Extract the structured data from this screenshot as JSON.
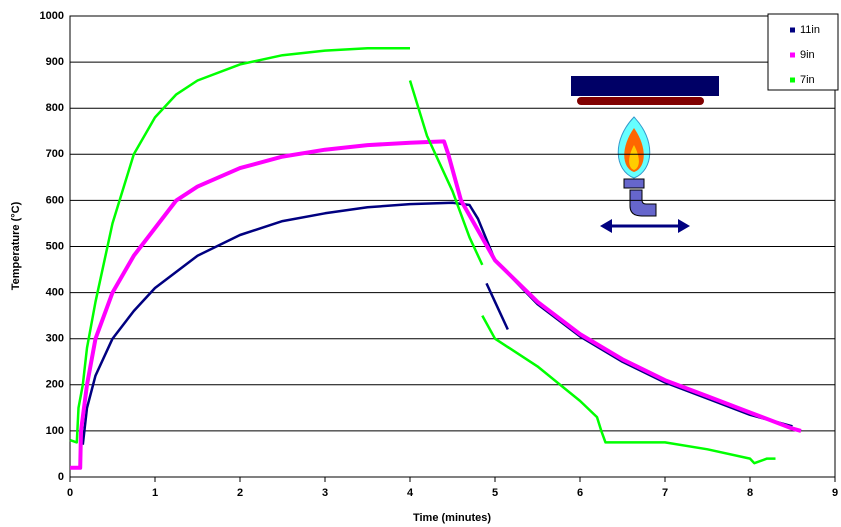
{
  "chart_data": {
    "type": "line",
    "x_label": "Time (minutes)",
    "y_label": "Temperature (°C)",
    "xlim": [
      0,
      9
    ],
    "xticks": [
      0,
      1,
      2,
      3,
      4,
      5,
      6,
      7,
      8,
      9
    ],
    "ylim": [
      0,
      1000
    ],
    "yticks": [
      0,
      100,
      200,
      300,
      400,
      500,
      600,
      700,
      800,
      900,
      1000
    ],
    "grid": true,
    "legend": "top-right",
    "series": [
      {
        "name": "11in",
        "color": "#000080",
        "x": [
          0.15,
          0.2,
          0.3,
          0.5,
          0.75,
          1,
          1.5,
          2,
          2.5,
          3,
          3.5,
          4,
          4.5,
          4.7,
          4.8,
          5,
          5.5,
          6,
          6.5,
          7,
          7.5,
          8,
          8.5,
          null,
          4.9,
          5.0,
          5.15
        ],
        "values": [
          70,
          150,
          220,
          300,
          360,
          410,
          480,
          525,
          555,
          572,
          585,
          592,
          595,
          590,
          560,
          470,
          375,
          305,
          250,
          205,
          170,
          135,
          110,
          null,
          420,
          380,
          320
        ]
      },
      {
        "name": "9in",
        "color": "#ff00ff",
        "x": [
          0,
          0.12,
          0.13,
          0.2,
          0.3,
          0.5,
          0.75,
          1,
          1.25,
          1.5,
          2,
          2.5,
          3,
          3.5,
          4,
          4.4,
          4.45,
          4.6,
          5,
          5.5,
          6,
          6.5,
          7,
          7.5,
          8,
          8.5,
          8.6
        ],
        "values": [
          20,
          20,
          100,
          200,
          300,
          400,
          480,
          540,
          600,
          630,
          670,
          695,
          710,
          720,
          725,
          728,
          700,
          600,
          470,
          380,
          310,
          255,
          210,
          175,
          140,
          105,
          100
        ]
      },
      {
        "name": "7in",
        "color": "#00ff00",
        "x": [
          0,
          0.08,
          0.1,
          0.15,
          0.2,
          0.3,
          0.5,
          0.75,
          1,
          1.25,
          1.5,
          2,
          2.5,
          3,
          3.5,
          4,
          null,
          4.0,
          4.2,
          4.5,
          4.7,
          4.85,
          null,
          4.85,
          5,
          5.5,
          6,
          6.2,
          6.25,
          6.3,
          6.5,
          7,
          7.5,
          8,
          8.05,
          8.2,
          8.3
        ],
        "values": [
          80,
          75,
          150,
          200,
          280,
          380,
          550,
          700,
          780,
          830,
          860,
          895,
          915,
          925,
          930,
          930,
          null,
          860,
          740,
          620,
          520,
          460,
          null,
          350,
          300,
          240,
          165,
          130,
          100,
          75,
          75,
          75,
          60,
          40,
          30,
          40,
          40
        ]
      }
    ]
  }
}
